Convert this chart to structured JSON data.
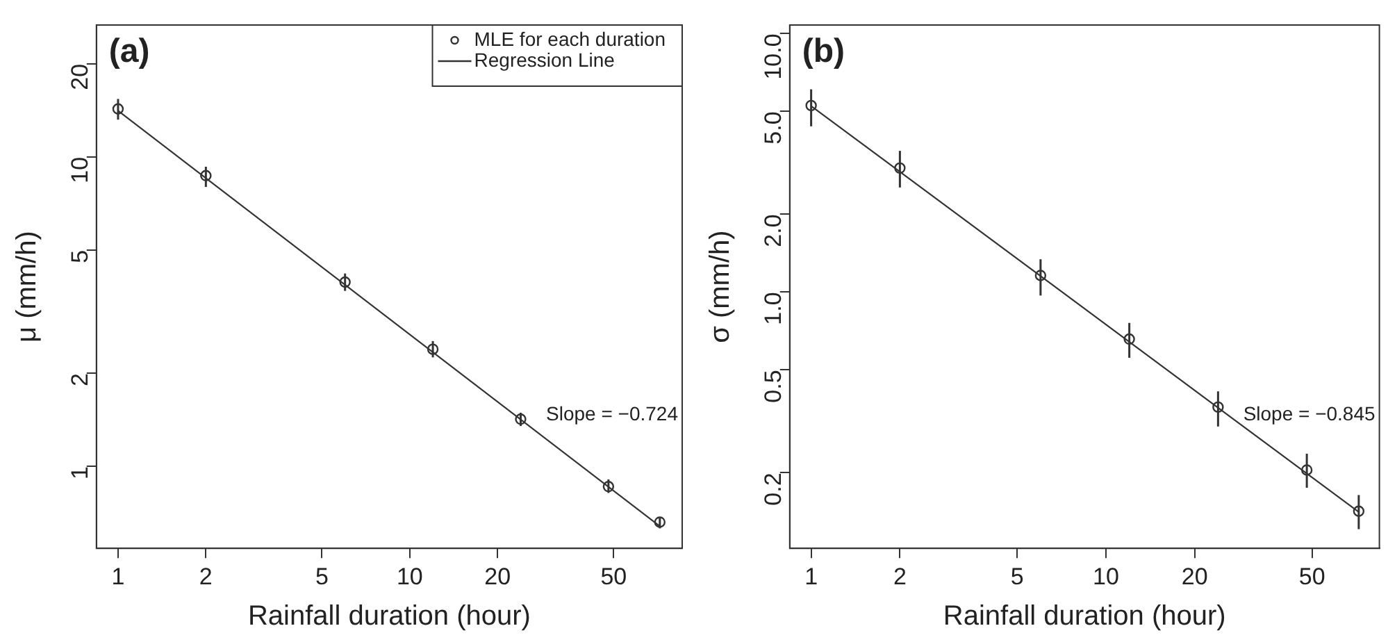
{
  "chart_data": [
    {
      "type": "scatter",
      "title": "(a)",
      "xlabel": "Rainfall duration (hour)",
      "ylabel": "μ (mm/h)",
      "log": "xy",
      "legend": "top right",
      "xlim": [
        0.843,
        85.9
      ],
      "ylim": [
        0.543,
        26.7
      ],
      "xticks": [
        1,
        2,
        5,
        10,
        20,
        50
      ],
      "yticks": [
        1,
        2,
        5,
        10,
        20
      ],
      "annotations": [
        "Slope = −0.724"
      ],
      "series": [
        {
          "name": "MLE for each duration",
          "marker": "circle",
          "color": "#333333",
          "x": [
            1,
            2,
            6,
            12,
            24,
            48,
            72
          ],
          "values": [
            14.3,
            8.7,
            3.94,
            2.39,
            1.42,
            0.86,
            0.66
          ],
          "errors": [
            [
              13.2,
              15.4
            ],
            [
              8.0,
              9.3
            ],
            [
              3.69,
              4.2
            ],
            [
              2.25,
              2.54
            ],
            [
              1.35,
              1.49
            ],
            [
              0.82,
              0.907
            ],
            [
              0.63,
              0.68
            ]
          ]
        },
        {
          "name": "Regression Line",
          "type": "line",
          "color": "#333333",
          "x": [
            1,
            72
          ],
          "values": [
            14.1,
            0.64
          ]
        }
      ]
    },
    {
      "type": "scatter",
      "title": "(b)",
      "xlabel": "Rainfall duration (hour)",
      "ylabel": "σ (mm/h)",
      "log": "xy",
      "legend": false,
      "xlim": [
        0.846,
        84.6
      ],
      "ylim": [
        0.102,
        10.8
      ],
      "xticks": [
        1,
        2,
        5,
        10,
        20,
        50
      ],
      "yticks": [
        {
          "value": 0.2,
          "label": "0.2"
        },
        {
          "value": 0.5,
          "label": "0.5"
        },
        {
          "value": 1,
          "label": "1.0"
        },
        {
          "value": 2,
          "label": "2.0"
        },
        {
          "value": 5,
          "label": "5.0"
        },
        {
          "value": 10,
          "label": "10.0"
        }
      ],
      "annotations": [
        "Slope = −0.845"
      ],
      "series": [
        {
          "marker": "circle",
          "color": "#333333",
          "x": [
            1,
            2,
            6,
            12,
            24,
            48,
            72
          ],
          "values": [
            5.27,
            3.02,
            1.16,
            0.658,
            0.359,
            0.205,
            0.142
          ],
          "errors": [
            [
              4.38,
              6.09
            ],
            [
              2.54,
              3.52
            ],
            [
              0.97,
              1.34
            ],
            [
              0.557,
              0.76
            ],
            [
              0.302,
              0.413
            ],
            [
              0.175,
              0.237
            ],
            [
              0.121,
              0.164
            ]
          ]
        },
        {
          "type": "line",
          "color": "#333333",
          "x": [
            1,
            72
          ],
          "values": [
            5.25,
            0.141
          ]
        }
      ]
    }
  ]
}
